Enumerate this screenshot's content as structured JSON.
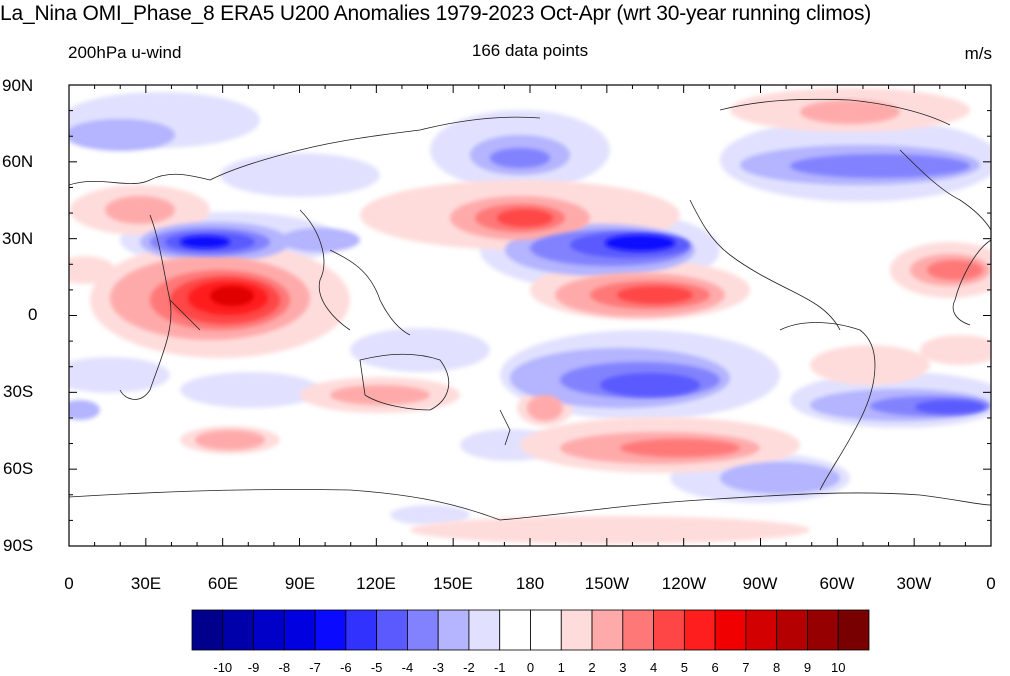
{
  "title": "La_Nina OMI_Phase_8 ERA5 U200 Anomalies 1979-2023 Oct-Apr (wrt 30-year running climos)",
  "subtitle_left": "200hPa u-wind",
  "subtitle_center": "166 data points",
  "subtitle_right": "m/s",
  "lat_labels": [
    "90N",
    "60N",
    "30N",
    "0",
    "30S",
    "60S",
    "90S"
  ],
  "lon_labels": [
    "0",
    "30E",
    "60E",
    "90E",
    "120E",
    "150E",
    "180",
    "150W",
    "120W",
    "90W",
    "60W",
    "30W",
    "0"
  ],
  "colorbar": {
    "labels": [
      "-10",
      "-9",
      "-8",
      "-7",
      "-6",
      "-5",
      "-4",
      "-3",
      "-2",
      "-1",
      "0",
      "1",
      "2",
      "3",
      "4",
      "5",
      "6",
      "7",
      "8",
      "9",
      "10"
    ],
    "colors": [
      "#00008c",
      "#0000aa",
      "#0000c8",
      "#0000e0",
      "#0a0aff",
      "#3232ff",
      "#5a5aff",
      "#8282ff",
      "#b4b4ff",
      "#e1e1ff",
      "#ffffff",
      "#ffffff",
      "#ffdcdc",
      "#ffaaaa",
      "#ff7878",
      "#ff4646",
      "#ff1e1e",
      "#f00000",
      "#d20000",
      "#b40000",
      "#960000",
      "#780000"
    ]
  }
}
